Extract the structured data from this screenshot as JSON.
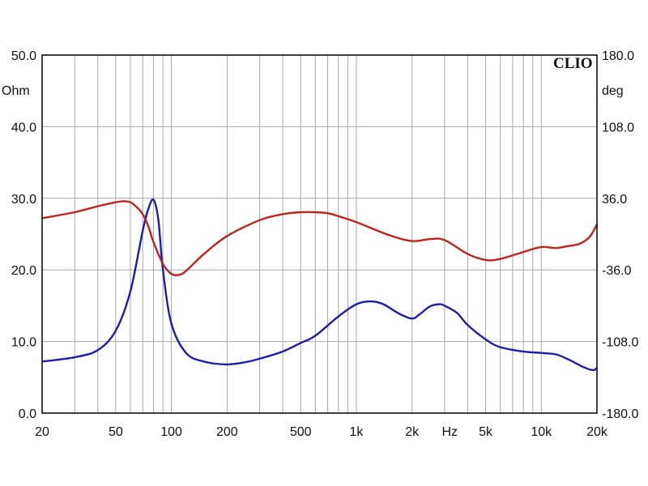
{
  "chart_data": {
    "type": "line",
    "brand": "CLIO",
    "x_scale": "log",
    "xlim": [
      20,
      20000
    ],
    "ylim_left": [
      0,
      50
    ],
    "ylim_right": [
      -180,
      180
    ],
    "left_unit": "Ohm",
    "right_unit": "deg",
    "x_unit": "Hz",
    "grid": true,
    "x_ticks": [
      {
        "value": 20,
        "label": "20"
      },
      {
        "value": 50,
        "label": "50"
      },
      {
        "value": 100,
        "label": "100"
      },
      {
        "value": 200,
        "label": "200"
      },
      {
        "value": 500,
        "label": "500"
      },
      {
        "value": 1000,
        "label": "1k"
      },
      {
        "value": 2000,
        "label": "2k"
      },
      {
        "value": 5000,
        "label": "5k"
      },
      {
        "value": 10000,
        "label": "10k"
      },
      {
        "value": 20000,
        "label": "20k"
      }
    ],
    "y_ticks_left": [
      "0.0",
      "10.0",
      "20.0",
      "30.0",
      "40.0",
      "50.0"
    ],
    "y_ticks_right": [
      "-180.0",
      "-108.0",
      "-36.0",
      "36.0",
      "108.0",
      "180.0"
    ],
    "series": [
      {
        "axis": "left",
        "color": "#1c1cb4",
        "x": [
          20,
          30,
          40,
          50,
          60,
          70,
          75,
          80,
          85,
          90,
          100,
          120,
          150,
          200,
          250,
          300,
          400,
          500,
          600,
          800,
          1000,
          1200,
          1400,
          1700,
          2000,
          2200,
          2500,
          2800,
          3000,
          3500,
          4000,
          5000,
          6000,
          8000,
          10000,
          12000,
          14000,
          17000,
          19000,
          20000
        ],
        "y": [
          7.2,
          7.8,
          8.8,
          11.5,
          17.0,
          25.5,
          28.5,
          29.8,
          27.0,
          20.0,
          12.5,
          8.4,
          7.2,
          6.8,
          7.1,
          7.6,
          8.6,
          9.8,
          10.8,
          13.5,
          15.2,
          15.6,
          15.2,
          13.9,
          13.2,
          13.8,
          14.9,
          15.2,
          15.0,
          14.0,
          12.3,
          10.3,
          9.2,
          8.6,
          8.4,
          8.2,
          7.5,
          6.4,
          6.0,
          6.3
        ]
      },
      {
        "axis": "right",
        "color": "#c0221e",
        "x": [
          20,
          30,
          40,
          50,
          55,
          60,
          65,
          70,
          75,
          80,
          90,
          100,
          110,
          120,
          150,
          200,
          300,
          400,
          500,
          600,
          700,
          800,
          1000,
          1500,
          2000,
          2500,
          3000,
          4000,
          5000,
          6000,
          8000,
          10000,
          12000,
          14000,
          16000,
          18000,
          19000,
          20000
        ],
        "y": [
          16,
          22,
          28,
          32,
          33,
          32,
          27,
          20,
          8,
          -8,
          -30,
          -40,
          -41,
          -37,
          -20,
          -2,
          14,
          20,
          22,
          22,
          21,
          18,
          12,
          -1,
          -7,
          -5,
          -6,
          -20,
          -26,
          -25,
          -18,
          -13,
          -14,
          -12,
          -10,
          -4,
          2,
          10
        ]
      }
    ]
  }
}
